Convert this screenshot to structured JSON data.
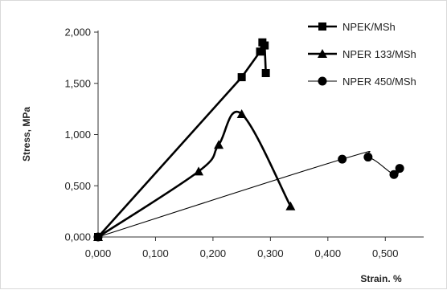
{
  "chart_data": {
    "type": "scatter",
    "title": "",
    "xlabel": "Strain. %",
    "ylabel": "Stress, MPa",
    "xlim": [
      0,
      0.55
    ],
    "ylim": [
      0,
      2.0
    ],
    "x_ticks": [
      "0,000",
      "0,100",
      "0,200",
      "0,300",
      "0,400",
      "0,500"
    ],
    "x_tick_values": [
      0,
      0.1,
      0.2,
      0.3,
      0.4,
      0.5
    ],
    "y_ticks": [
      "0,000",
      "0,500",
      "1,000",
      "1,500",
      "2,000"
    ],
    "y_tick_values": [
      0,
      0.5,
      1.0,
      1.5,
      2.0
    ],
    "grid": false,
    "legend_position": "top-right",
    "series": [
      {
        "name": "NPEK/MSh",
        "marker": "square",
        "color": "#000000",
        "line_width": "thick",
        "smooth": false,
        "x": [
          0.0,
          0.25,
          0.282,
          0.286,
          0.29,
          0.292
        ],
        "y": [
          0.0,
          1.56,
          1.81,
          1.9,
          1.87,
          1.6
        ]
      },
      {
        "name": "NPER 133/MSh",
        "marker": "triangle",
        "color": "#000000",
        "line_width": "thick",
        "smooth": true,
        "x": [
          0.0,
          0.175,
          0.21,
          0.25,
          0.335
        ],
        "y": [
          0.0,
          0.64,
          0.9,
          1.2,
          0.3
        ]
      },
      {
        "name": "NPER 450/MSh",
        "marker": "circle",
        "color": "#000000",
        "line_width": "thin",
        "smooth": true,
        "x": [
          0.0,
          0.425,
          0.47,
          0.515,
          0.525
        ],
        "y": [
          0.0,
          0.76,
          0.78,
          0.61,
          0.67
        ]
      }
    ]
  }
}
